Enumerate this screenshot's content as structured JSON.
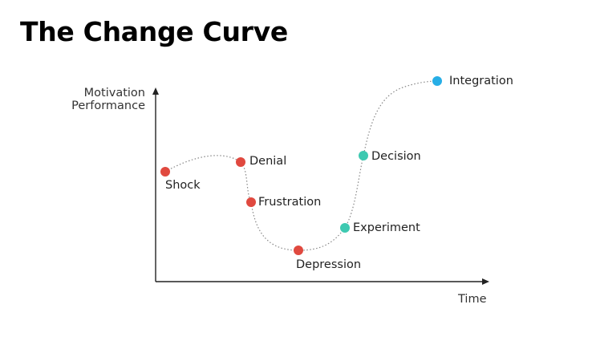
{
  "title": "The Change Curve",
  "axes": {
    "y_label_line1": "Motivation",
    "y_label_line2": "Performance",
    "x_label": "Time"
  },
  "colors": {
    "negative": "#e0493f",
    "positive": "#3ec9b1",
    "final": "#27aee6",
    "curve": "#888888",
    "axis": "#222222"
  },
  "stages": [
    {
      "label": "Shock",
      "color": "negative"
    },
    {
      "label": "Denial",
      "color": "negative"
    },
    {
      "label": "Frustration",
      "color": "negative"
    },
    {
      "label": "Depression",
      "color": "negative"
    },
    {
      "label": "Experiment",
      "color": "positive"
    },
    {
      "label": "Decision",
      "color": "positive"
    },
    {
      "label": "Integration",
      "color": "final"
    }
  ]
}
